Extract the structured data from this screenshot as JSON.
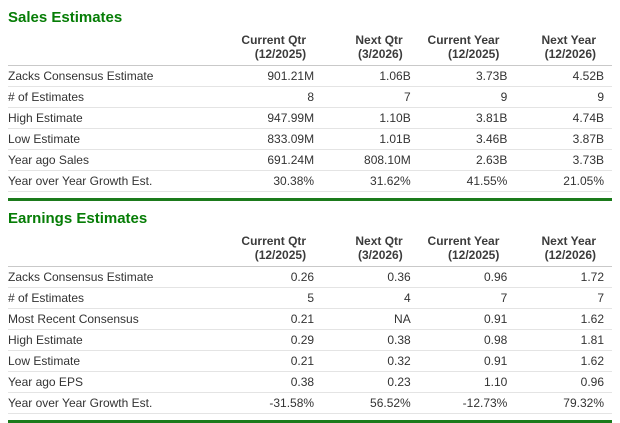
{
  "colors": {
    "heading_green": "#067d06",
    "divider_green": "#1b7a1b",
    "header_border_gray": "#c9c9c9",
    "row_border_gray": "#e4e4e4",
    "text": "#333333",
    "background": "#ffffff"
  },
  "sections": [
    {
      "id": "sales-estimates",
      "title": "Sales Estimates",
      "columns": [
        "Current Qtr\n(12/2025)",
        "Next Qtr\n(3/2026)",
        "Current Year\n(12/2025)",
        "Next Year\n(12/2026)"
      ],
      "rows": [
        {
          "label": "Zacks Consensus Estimate",
          "values": [
            "901.21M",
            "1.06B",
            "3.73B",
            "4.52B"
          ]
        },
        {
          "label": "# of Estimates",
          "values": [
            "8",
            "7",
            "9",
            "9"
          ]
        },
        {
          "label": "High Estimate",
          "values": [
            "947.99M",
            "1.10B",
            "3.81B",
            "4.74B"
          ]
        },
        {
          "label": "Low Estimate",
          "values": [
            "833.09M",
            "1.01B",
            "3.46B",
            "3.87B"
          ]
        },
        {
          "label": "Year ago Sales",
          "values": [
            "691.24M",
            "808.10M",
            "2.63B",
            "3.73B"
          ]
        },
        {
          "label": "Year over Year Growth Est.",
          "values": [
            "30.38%",
            "31.62%",
            "41.55%",
            "21.05%"
          ]
        }
      ]
    },
    {
      "id": "earnings-estimates",
      "title": "Earnings Estimates",
      "columns": [
        "Current Qtr\n(12/2025)",
        "Next Qtr\n(3/2026)",
        "Current Year\n(12/2025)",
        "Next Year\n(12/2026)"
      ],
      "rows": [
        {
          "label": "Zacks Consensus Estimate",
          "values": [
            "0.26",
            "0.36",
            "0.96",
            "1.72"
          ]
        },
        {
          "label": "# of Estimates",
          "values": [
            "5",
            "4",
            "7",
            "7"
          ]
        },
        {
          "label": "Most Recent Consensus",
          "values": [
            "0.21",
            "NA",
            "0.91",
            "1.62"
          ]
        },
        {
          "label": "High Estimate",
          "values": [
            "0.29",
            "0.38",
            "0.98",
            "1.81"
          ]
        },
        {
          "label": "Low Estimate",
          "values": [
            "0.21",
            "0.32",
            "0.91",
            "1.62"
          ]
        },
        {
          "label": "Year ago EPS",
          "values": [
            "0.38",
            "0.23",
            "1.10",
            "0.96"
          ]
        },
        {
          "label": "Year over Year Growth Est.",
          "values": [
            "-31.58%",
            "56.52%",
            "-12.73%",
            "79.32%"
          ]
        }
      ]
    }
  ]
}
